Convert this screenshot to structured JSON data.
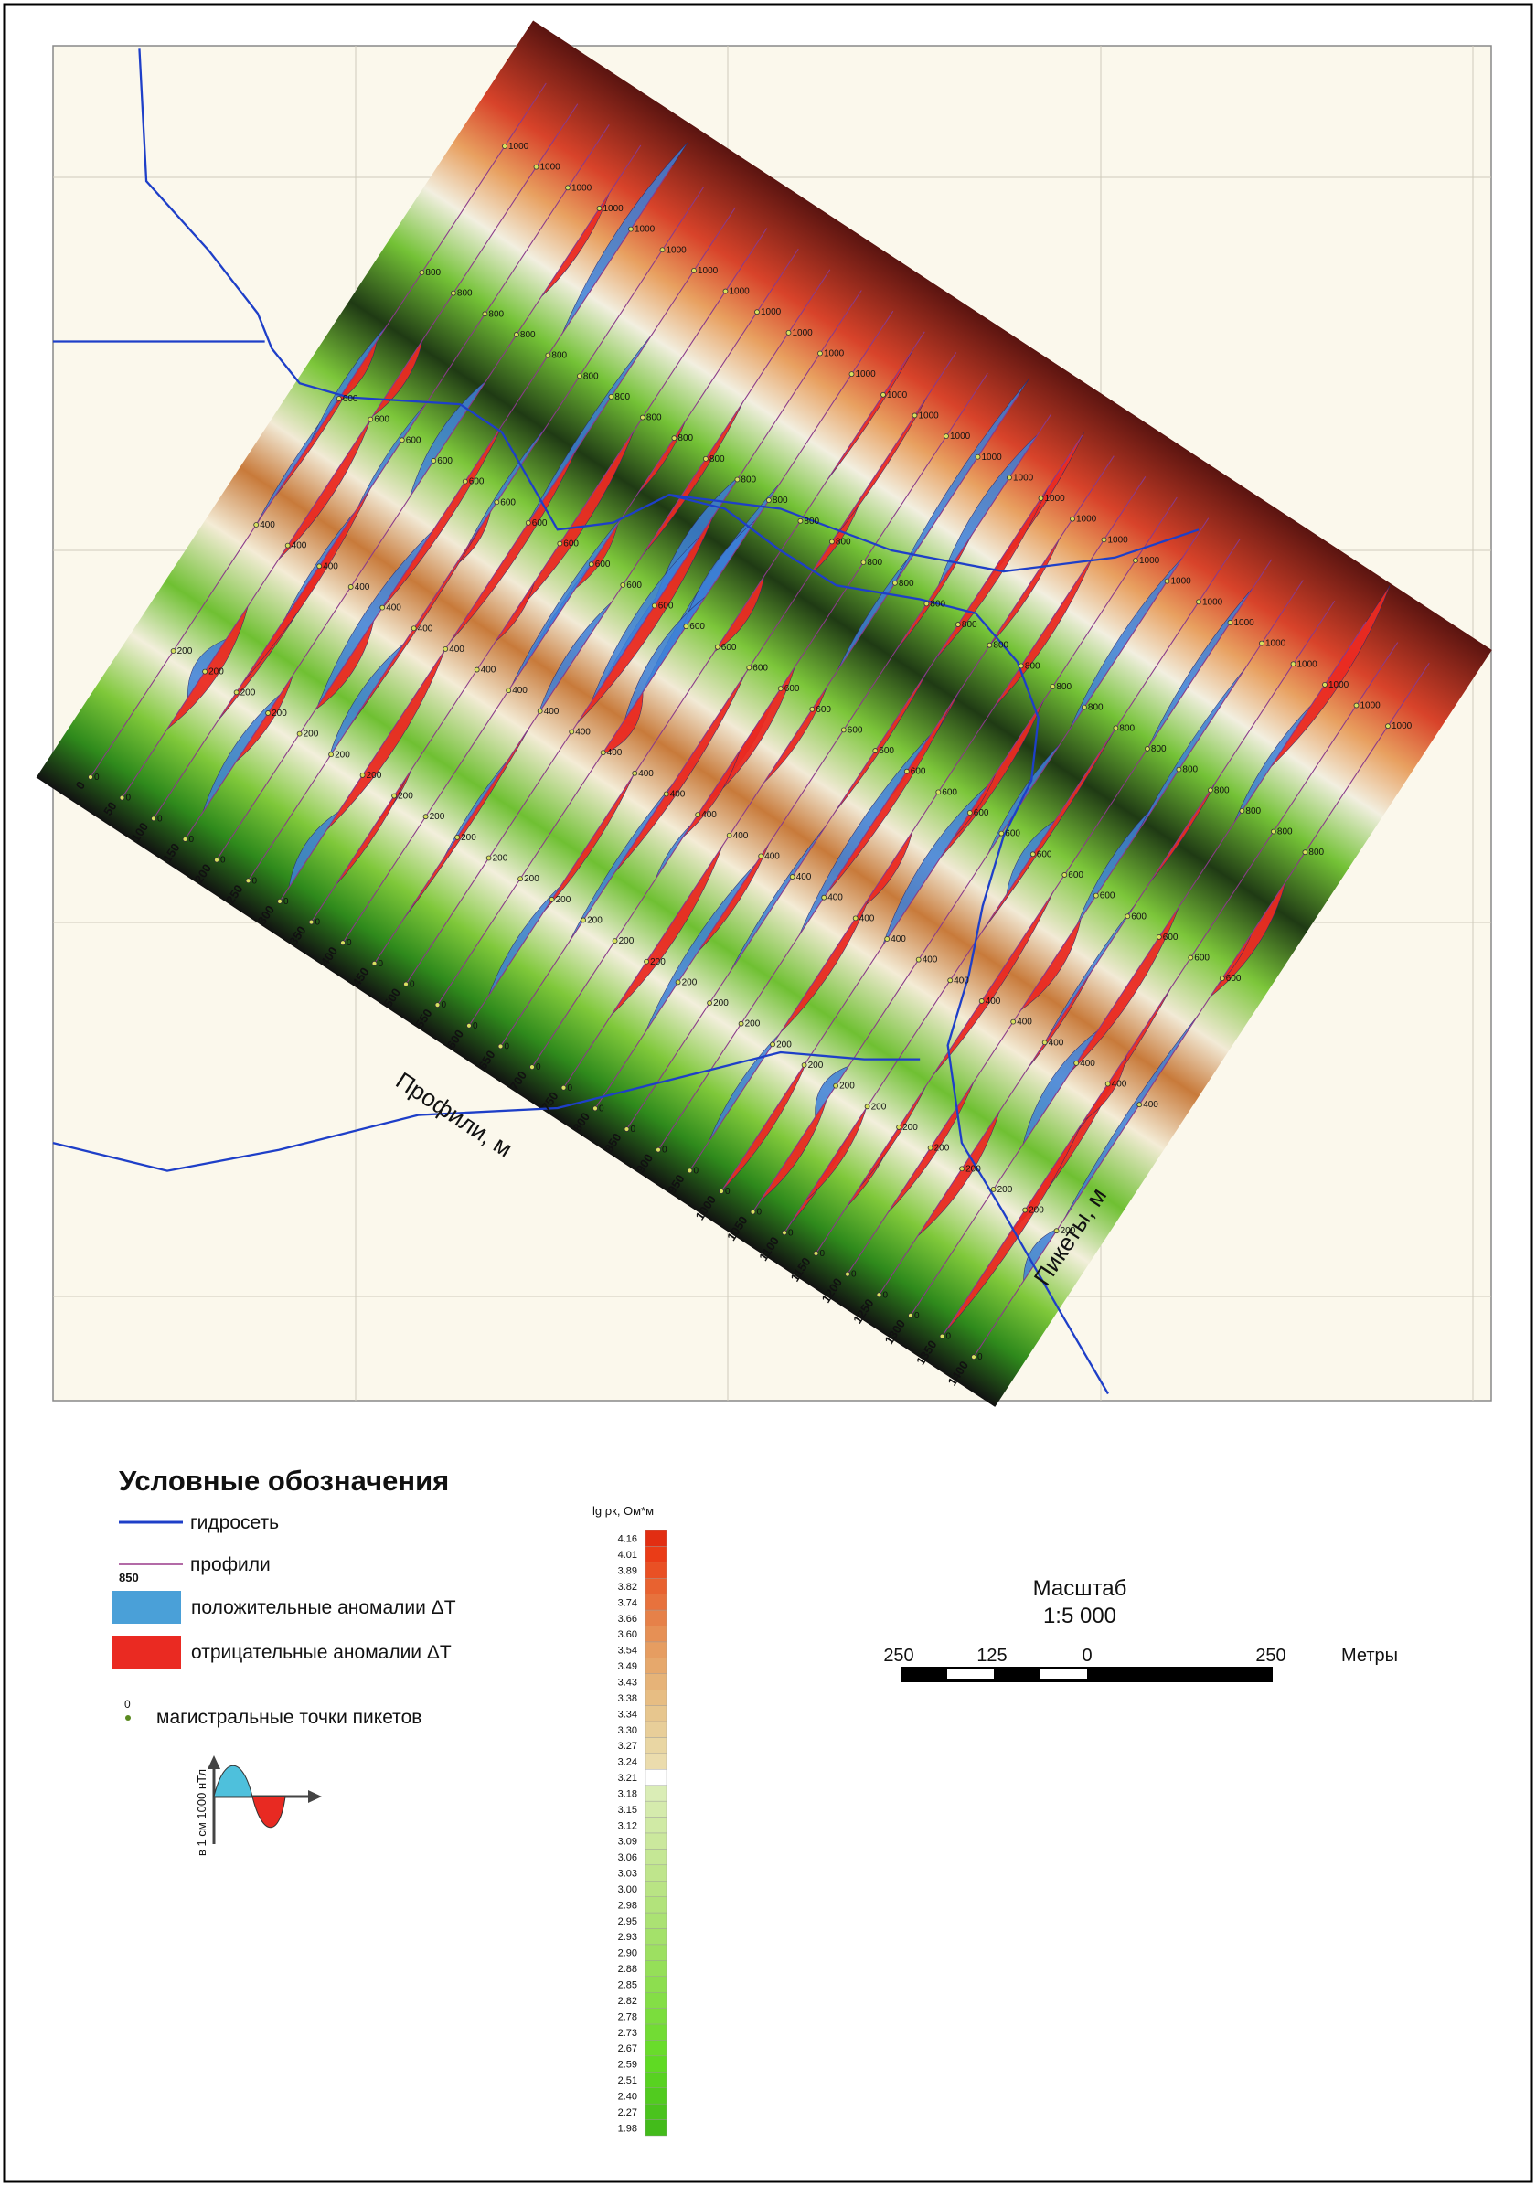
{
  "map": {
    "profiles": [
      0,
      50,
      100,
      150,
      200,
      250,
      300,
      350,
      400,
      450,
      500,
      550,
      600,
      650,
      700,
      750,
      800,
      850,
      900,
      950,
      1000,
      1050,
      1100,
      1150,
      1200,
      1250,
      1300,
      1350,
      1400
    ],
    "pickets": [
      0,
      200,
      400,
      600,
      800,
      1000
    ],
    "profiles_axis": "Профили, м",
    "pickets_axis": "Пикеты, м"
  },
  "legend": {
    "title": "Условные обозначения",
    "hydro": "гидросеть",
    "profiles": "профили",
    "profile_example": "850",
    "positive": "положительные аномалии ΔT",
    "negative": "отрицательные аномалии ΔT",
    "picket_example": "0",
    "pickets": "магистральные точки пикетов",
    "icon_scale": "в 1 см 1000 нТл"
  },
  "colorbar": {
    "title": "lg ρк, Ом*м",
    "labels": [
      "4.16",
      "4.01",
      "3.89",
      "3.82",
      "3.74",
      "3.66",
      "3.60",
      "3.54",
      "3.49",
      "3.43",
      "3.38",
      "3.34",
      "3.30",
      "3.27",
      "3.24",
      "3.21",
      "3.18",
      "3.15",
      "3.12",
      "3.09",
      "3.06",
      "3.03",
      "3.00",
      "2.98",
      "2.95",
      "2.93",
      "2.90",
      "2.88",
      "2.85",
      "2.82",
      "2.78",
      "2.73",
      "2.67",
      "2.59",
      "2.51",
      "2.40",
      "2.27",
      "1.98"
    ]
  },
  "scale": {
    "title": "Масштаб",
    "ratio": "1:5 000",
    "labels": [
      250,
      125,
      0,
      250
    ],
    "unit": "Метры"
  }
}
